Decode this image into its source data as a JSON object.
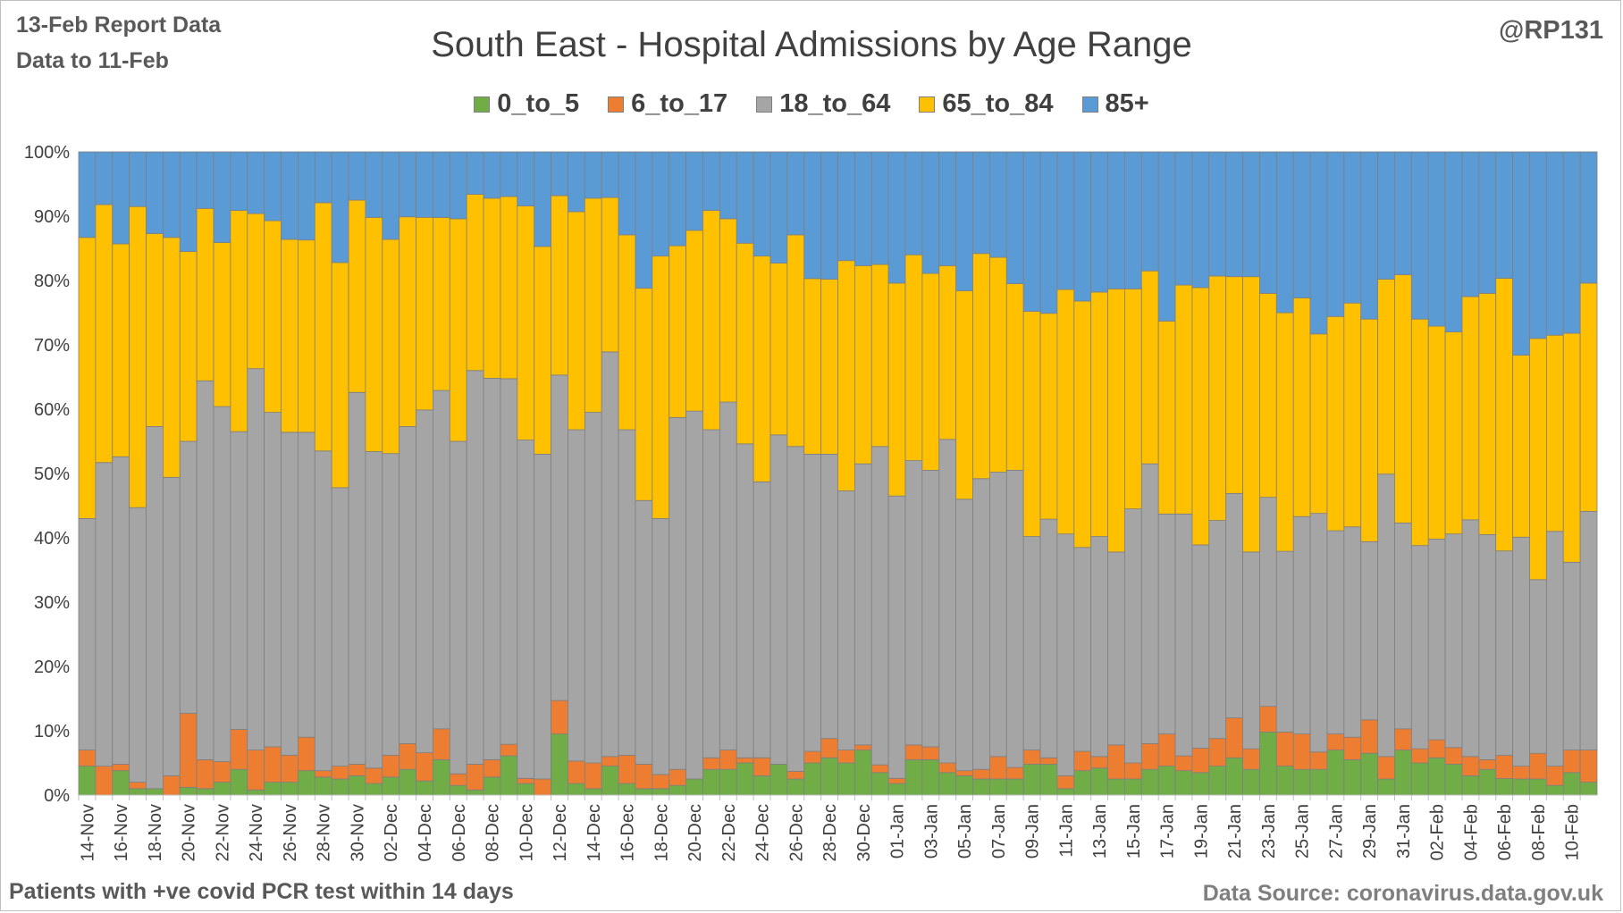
{
  "header": {
    "report_line_1": "13-Feb Report Data",
    "report_line_2": "Data to 11-Feb",
    "handle": "@RP131"
  },
  "footer": {
    "left": "Patients with  +ve covid PCR test within 14 days",
    "right": "Data Source: coronavirus.data.gov.uk"
  },
  "chart_data": {
    "type": "bar",
    "stacked": "percent",
    "title": "South East - Hospital Admissions by Age Range",
    "xlabel": "",
    "ylabel": "",
    "ylim": [
      0,
      100
    ],
    "yticks": [
      "0%",
      "10%",
      "20%",
      "30%",
      "40%",
      "50%",
      "60%",
      "70%",
      "80%",
      "90%",
      "100%"
    ],
    "legend_position": "top",
    "grid": true,
    "categories": [
      "14-Nov",
      "15-Nov",
      "16-Nov",
      "17-Nov",
      "18-Nov",
      "19-Nov",
      "20-Nov",
      "21-Nov",
      "22-Nov",
      "23-Nov",
      "24-Nov",
      "25-Nov",
      "26-Nov",
      "27-Nov",
      "28-Nov",
      "29-Nov",
      "30-Nov",
      "01-Dec",
      "02-Dec",
      "03-Dec",
      "04-Dec",
      "05-Dec",
      "06-Dec",
      "07-Dec",
      "08-Dec",
      "09-Dec",
      "10-Dec",
      "11-Dec",
      "12-Dec",
      "13-Dec",
      "14-Dec",
      "15-Dec",
      "16-Dec",
      "17-Dec",
      "18-Dec",
      "19-Dec",
      "20-Dec",
      "21-Dec",
      "22-Dec",
      "23-Dec",
      "24-Dec",
      "25-Dec",
      "26-Dec",
      "27-Dec",
      "28-Dec",
      "29-Dec",
      "30-Dec",
      "31-Dec",
      "01-Jan",
      "02-Jan",
      "03-Jan",
      "04-Jan",
      "05-Jan",
      "06-Jan",
      "07-Jan",
      "08-Jan",
      "09-Jan",
      "10-Jan",
      "11-Jan",
      "12-Jan",
      "13-Jan",
      "14-Jan",
      "15-Jan",
      "16-Jan",
      "17-Jan",
      "18-Jan",
      "19-Jan",
      "20-Jan",
      "21-Jan",
      "22-Jan",
      "23-Jan",
      "24-Jan",
      "25-Jan",
      "26-Jan",
      "27-Jan",
      "28-Jan",
      "29-Jan",
      "30-Jan",
      "31-Jan",
      "01-Feb",
      "02-Feb",
      "03-Feb",
      "04-Feb",
      "05-Feb",
      "06-Feb",
      "07-Feb",
      "08-Feb",
      "09-Feb",
      "10-Feb",
      "11-Feb"
    ],
    "series": [
      {
        "name": "0_to_5",
        "color": "#70ad47",
        "values": [
          4.5,
          0,
          3.8,
          1,
          1,
          0,
          1.2,
          1,
          2,
          4,
          0.8,
          2,
          2,
          3.8,
          2.8,
          2.5,
          3,
          1.8,
          2.8,
          4,
          2.2,
          5.5,
          1.5,
          0.8,
          2.8,
          5.8,
          1.8,
          0,
          9.5,
          1.8,
          1,
          4.5,
          1.8,
          1,
          1,
          1.5,
          2.5,
          4,
          4,
          5,
          3,
          4.8,
          2.5,
          5,
          5.8,
          5,
          7,
          3.5,
          1.8,
          5.5,
          5.5,
          3.5,
          3,
          2.5,
          2.5,
          2.5,
          4.8,
          4.8,
          1,
          3.8,
          4.2,
          2.5,
          2.5,
          4,
          4.5,
          3.8,
          3.5,
          4.5,
          5.8,
          4,
          9.8,
          4.5,
          4,
          4,
          7,
          5.5,
          6.5,
          2.5,
          7,
          5,
          5.8,
          4.8,
          3,
          4,
          2.5,
          2.5,
          2.5,
          1.5,
          3.5,
          2
        ]
      },
      {
        "name": "6_to_17",
        "color": "#ed7d31",
        "values": [
          2.5,
          4.5,
          1,
          1,
          0,
          3,
          11.5,
          4.5,
          3.2,
          6.2,
          6.2,
          5.5,
          4.2,
          5.2,
          1,
          2,
          1.8,
          2.4,
          3.4,
          4,
          4.4,
          4.8,
          1.8,
          4,
          2.7,
          1.7,
          0.8,
          2.5,
          5.2,
          3.5,
          4,
          1.5,
          4.4,
          3.8,
          2.2,
          2.5,
          0,
          1.8,
          3,
          0.8,
          2.8,
          0,
          1.2,
          1.8,
          3,
          2,
          0.8,
          1.2,
          0.8,
          2.3,
          2,
          1.5,
          0.8,
          1.5,
          3.5,
          1.8,
          2.2,
          1,
          2,
          3,
          1.8,
          5.3,
          2.5,
          4,
          5,
          2.3,
          3.8,
          4.3,
          6.2,
          3.2,
          4,
          5.3,
          5.5,
          2.7,
          2.5,
          3.5,
          5.2,
          3.5,
          3.3,
          2.2,
          2.8,
          2.6,
          3,
          1.5,
          3.5,
          2,
          4,
          3,
          3.5,
          5
        ]
      },
      {
        "name": "18_to_64",
        "color": "#a5a5a5",
        "values": [
          36,
          47.2,
          47.8,
          42.7,
          56.3,
          46.4,
          42.3,
          58.9,
          55.2,
          46.3,
          59.3,
          52,
          50.2,
          47.4,
          49.7,
          43.3,
          57.8,
          49.2,
          46.9,
          49.3,
          53.4,
          52.6,
          51.7,
          61.2,
          59.3,
          54,
          52.6,
          50.5,
          50.6,
          51.5,
          54.5,
          62.9,
          50.6,
          41,
          39.8,
          54.7,
          57.2,
          51,
          54.1,
          48.8,
          42.9,
          51.2,
          50.5,
          46.2,
          44.2,
          40.3,
          43.7,
          49.5,
          43.9,
          44.2,
          43,
          50.3,
          42.2,
          45.2,
          44.2,
          46.2,
          33.2,
          37.1,
          37.6,
          31.7,
          34.2,
          30,
          39.5,
          43.5,
          34.2,
          37.6,
          31.6,
          33.9,
          34.9,
          30.6,
          32.5,
          28.1,
          33.8,
          37.1,
          31.6,
          32.7,
          27.7,
          43.9,
          32,
          31.6,
          31.2,
          33.2,
          36.8,
          35,
          30.9,
          35.6,
          27,
          36.5,
          29.2,
          37.1
        ]
      },
      {
        "name": "65_to_84",
        "color": "#ffc000",
        "values": [
          43.7,
          40.1,
          33.1,
          46.8,
          30,
          37.3,
          29.5,
          26.8,
          25.5,
          34.4,
          24.1,
          29.8,
          30,
          29.9,
          38.6,
          35,
          29.9,
          36.4,
          33.3,
          32.6,
          30,
          26.9,
          34.6,
          27.4,
          28,
          26.9,
          36.4,
          32.3,
          27.9,
          33.9,
          33.3,
          24,
          30.3,
          33,
          40.8,
          26.7,
          28.1,
          34.1,
          28.5,
          31.2,
          35.1,
          26.7,
          32.9,
          27.3,
          27.2,
          35.8,
          30.8,
          28.3,
          33.1,
          32,
          30.6,
          27,
          32.4,
          35,
          33.4,
          29,
          35,
          32,
          38,
          38.3,
          38,
          40.9,
          34.2,
          30,
          30,
          35.6,
          40,
          38,
          33.7,
          42.8,
          31.7,
          37.1,
          34,
          27.9,
          33.3,
          34.8,
          34.6,
          30.3,
          38.6,
          35.2,
          33.1,
          31.4,
          34.7,
          37.5,
          41.2,
          28.3,
          37.5,
          30.5,
          35.6,
          35.5
        ]
      },
      {
        "name": "85+",
        "color": "#5b9bd5",
        "values": [
          13.3,
          8.2,
          14.3,
          8.5,
          12.7,
          13.3,
          15.5,
          8.8,
          14.1,
          9.1,
          9.6,
          10.7,
          13.6,
          13.7,
          7.9,
          17.2,
          7.5,
          10.2,
          13.6,
          10.1,
          10.2,
          10.2,
          10.4,
          6.6,
          7.2,
          6.6,
          8.4,
          14.7,
          6.8,
          9.3,
          7.2,
          7.1,
          12.9,
          21.2,
          16.2,
          14.6,
          12.2,
          9.1,
          10.4,
          14.2,
          16.2,
          17.3,
          12.9,
          19.7,
          19.8,
          16.9,
          17.7,
          17.5,
          20.4,
          16,
          18.9,
          17.7,
          21.6,
          15.8,
          16.4,
          20.5,
          24.8,
          25.1,
          21.4,
          23.2,
          21.8,
          21.3,
          21.3,
          18.5,
          26.3,
          20.7,
          21.1,
          19.3,
          19.4,
          19.4,
          22,
          25,
          22.7,
          28.3,
          25.6,
          23.5,
          26,
          19.8,
          19.1,
          26,
          27.1,
          28,
          22.5,
          22,
          19.1,
          31.6,
          29,
          28.5,
          28.2,
          20.4
        ]
      }
    ]
  }
}
